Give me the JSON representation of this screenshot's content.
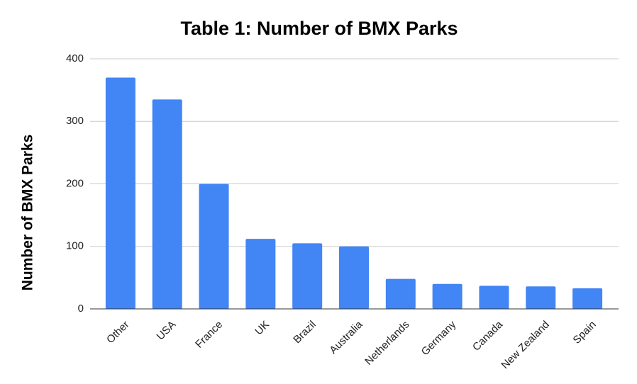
{
  "chart_data": {
    "type": "bar",
    "title": "Table 1: Number of BMX Parks",
    "y_label": "Number of BMX Parks",
    "categories": [
      "Other",
      "USA",
      "France",
      "UK",
      "Brazil",
      "Australia",
      "Netherlands",
      "Germany",
      "Canada",
      "New Zealand",
      "Spain"
    ],
    "values": [
      370,
      335,
      200,
      112,
      105,
      100,
      48,
      40,
      37,
      36,
      33
    ],
    "color": "#4285f4",
    "ylim": [
      0,
      400
    ],
    "yticks": [
      0,
      100,
      200,
      300,
      400
    ],
    "grid": true
  }
}
